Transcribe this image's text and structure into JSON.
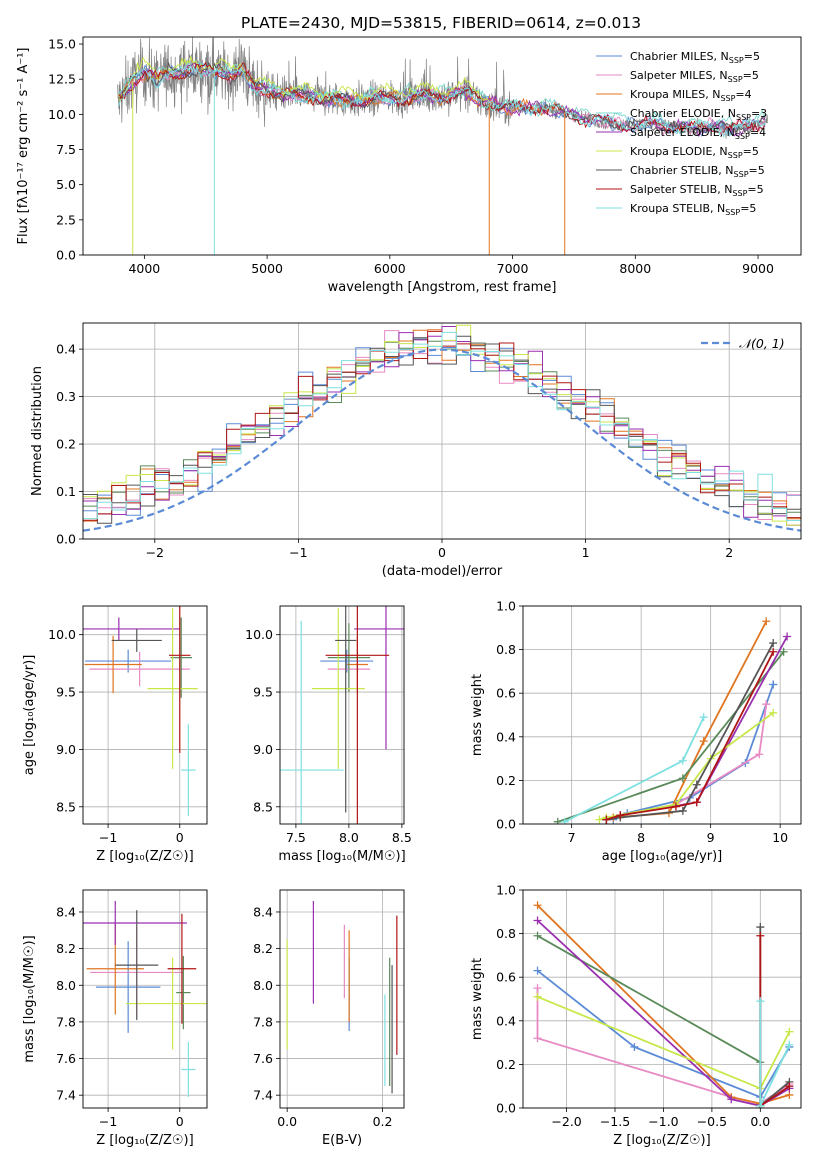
{
  "figure": {
    "title": "PLATE=2430, MJD=53815, FIBERID=0614, z=0.013"
  },
  "series_colors": [
    "#5b8bd6",
    "#e78ac3",
    "#e07520",
    "#7fdad0",
    "#9a2fb0",
    "#c8e84a",
    "#555555",
    "#b01515",
    "#7ee0e0"
  ],
  "chart_data": [
    {
      "id": "spectrum",
      "type": "line",
      "xlabel": "wavelength [Angstrom, rest frame]",
      "ylabel": "Flux [fλ10⁻¹⁷ erg cm⁻² s⁻¹ A⁻¹]",
      "xlim": [
        3500,
        9350
      ],
      "ylim": [
        0,
        15.5
      ],
      "xticks": [
        4000,
        5000,
        6000,
        7000,
        8000,
        9000
      ],
      "yticks": [
        0.0,
        2.5,
        5.0,
        7.5,
        10.0,
        12.5,
        15.0
      ],
      "legend_position": "top-right",
      "data_color": "#808080",
      "continuum": {
        "x": [
          3800,
          3900,
          4000,
          4100,
          4200,
          4300,
          4400,
          4500,
          4600,
          4700,
          4800,
          4900,
          5000,
          5200,
          5400,
          5600,
          5800,
          6000,
          6200,
          6400,
          6600,
          6800,
          7000,
          7200,
          7400,
          7600,
          7800,
          8000,
          8200,
          8400,
          8600,
          8800,
          9000,
          9100
        ],
        "y": [
          11.0,
          12.3,
          13.0,
          12.4,
          13.0,
          12.9,
          13.2,
          13.2,
          13.1,
          12.6,
          13.2,
          11.9,
          11.6,
          11.4,
          11.2,
          11.0,
          11.0,
          11.2,
          11.2,
          11.3,
          11.5,
          10.8,
          10.4,
          10.5,
          10.2,
          9.7,
          9.4,
          9.2,
          9.3,
          9.0,
          9.1,
          9.0,
          9.3,
          9.6
        ]
      },
      "series": [
        {
          "name": "Chabrier MILES, N",
          "ssp": "5"
        },
        {
          "name": "Salpeter MILES, N",
          "ssp": "5"
        },
        {
          "name": "Kroupa MILES, N",
          "ssp": "4"
        },
        {
          "name": "Chabrier ELODIE, N",
          "ssp": "3"
        },
        {
          "name": "Salpeter ELODIE, N",
          "ssp": "4"
        },
        {
          "name": "Kroupa ELODIE, N",
          "ssp": "5"
        },
        {
          "name": "Chabrier STELIB, N",
          "ssp": "5"
        },
        {
          "name": "Salpeter STELIB, N",
          "ssp": "5"
        },
        {
          "name": "Kroupa STELIB, N",
          "ssp": "5"
        }
      ],
      "ssp_subscript": "SSP",
      "ssp_eq": "="
    },
    {
      "id": "residuals",
      "type": "histogram",
      "xlabel": "(data-model)/error",
      "ylabel": "Normed distribution",
      "xlim": [
        -2.5,
        2.5
      ],
      "ylim": [
        0,
        0.455
      ],
      "xticks": [
        -2,
        -1,
        0,
        1,
        2
      ],
      "yticks": [
        0.0,
        0.1,
        0.2,
        0.3,
        0.4
      ],
      "grid": true,
      "bin_width": 0.1,
      "legend": "𝒩(0, 1)",
      "legend_position": "top-right"
    },
    {
      "id": "age_vs_Z",
      "type": "errorbar",
      "xlabel": "Z [log₁₀(Z/Z☉)]",
      "ylabel": "age  [log₁₀(age/yr)]",
      "xlim": [
        -1.35,
        0.38
      ],
      "ylim": [
        8.35,
        10.25
      ],
      "xticks": [
        -1,
        0
      ],
      "yticks": [
        8.5,
        9.0,
        9.5,
        10.0
      ],
      "grid": true,
      "points": [
        {
          "x": -0.72,
          "xerr": 0.6,
          "y": 9.77,
          "yerr": 0.1
        },
        {
          "x": -0.56,
          "xerr": 0.7,
          "y": 9.7,
          "yerr": 0.15
        },
        {
          "x": -0.93,
          "xerr": 0.4,
          "y": 9.74,
          "yerr": 0.25
        },
        {
          "x": 0.02,
          "xerr": 0.15,
          "y": 9.8,
          "yerr": 0.35
        },
        {
          "x": -0.85,
          "xerr": 0.85,
          "y": 10.05,
          "yerr": 0.1
        },
        {
          "x": -0.1,
          "xerr": 0.35,
          "y": 9.53,
          "yerr": 0.7
        },
        {
          "x": -0.6,
          "xerr": 0.35,
          "y": 9.95,
          "yerr": 0.1
        },
        {
          "x": 0.0,
          "xerr": 0.15,
          "y": 9.82,
          "yerr": 0.85
        },
        {
          "x": 0.12,
          "xerr": 0.1,
          "y": 8.82,
          "yerr": 0.4
        }
      ]
    },
    {
      "id": "age_vs_mass",
      "type": "errorbar",
      "xlabel": "mass [log₁₀(M/M☉)]",
      "ylabel": "",
      "xlim": [
        7.35,
        8.52
      ],
      "ylim": [
        8.35,
        10.25
      ],
      "xticks": [
        7.5,
        8.0,
        8.5
      ],
      "yticks": [
        8.5,
        9.0,
        9.5,
        10.0
      ],
      "grid": true,
      "points": [
        {
          "x": 7.98,
          "xerr": 0.25,
          "y": 9.77,
          "yerr": 0.1
        },
        {
          "x": 8.0,
          "xerr": 0.2,
          "y": 9.7,
          "yerr": 0.2
        },
        {
          "x": 8.08,
          "xerr": 0.1,
          "y": 9.74,
          "yerr": 0.25
        },
        {
          "x": 8.0,
          "xerr": 0.2,
          "y": 9.8,
          "yerr": 0.3
        },
        {
          "x": 8.35,
          "xerr": 0.3,
          "y": 10.05,
          "yerr": 1.05
        },
        {
          "x": 7.9,
          "xerr": 0.25,
          "y": 9.53,
          "yerr": 0.7
        },
        {
          "x": 7.97,
          "xerr": 0.1,
          "y": 9.95,
          "yerr": 1.5
        },
        {
          "x": 8.08,
          "xerr": 0.3,
          "y": 9.82,
          "yerr": 1.5
        },
        {
          "x": 7.55,
          "xerr": 0.4,
          "y": 8.82,
          "yerr": 1.3
        }
      ]
    },
    {
      "id": "massweight_vs_age",
      "type": "line",
      "xlabel": "age  [log₁₀(age/yr)]",
      "ylabel": "mass weight",
      "xlim": [
        6.3,
        10.3
      ],
      "ylim": [
        0,
        1.0
      ],
      "xticks": [
        7,
        8,
        9,
        10
      ],
      "yticks": [
        0.0,
        0.2,
        0.4,
        0.6,
        0.8,
        1.0
      ],
      "grid": true,
      "series": [
        {
          "x": [
            7.6,
            7.8,
            8.7,
            9.5,
            9.9,
            9.9
          ],
          "y": [
            0.02,
            0.05,
            0.12,
            0.28,
            0.64,
            0.64
          ]
        },
        {
          "x": [
            7.5,
            7.7,
            8.5,
            9.7,
            9.8,
            9.8
          ],
          "y": [
            0.02,
            0.04,
            0.09,
            0.32,
            0.55,
            0.55
          ]
        },
        {
          "x": [
            7.5,
            7.6,
            8.4,
            8.9,
            9.8
          ],
          "y": [
            0.02,
            0.03,
            0.05,
            0.38,
            0.93
          ]
        },
        {
          "x": [
            6.8,
            8.6,
            10.05
          ],
          "y": [
            0.01,
            0.21,
            0.79
          ]
        },
        {
          "x": [
            7.5,
            7.7,
            8.8,
            10.1
          ],
          "y": [
            0.02,
            0.04,
            0.1,
            0.86
          ]
        },
        {
          "x": [
            7.4,
            7.5,
            8.5,
            9.0,
            9.9
          ],
          "y": [
            0.02,
            0.03,
            0.09,
            0.3,
            0.51
          ]
        },
        {
          "x": [
            7.5,
            7.7,
            8.6,
            8.8,
            9.9
          ],
          "y": [
            0.02,
            0.03,
            0.06,
            0.18,
            0.83
          ]
        },
        {
          "x": [
            7.5,
            7.7,
            8.5,
            8.8,
            9.9
          ],
          "y": [
            0.02,
            0.04,
            0.08,
            0.1,
            0.79
          ]
        },
        {
          "x": [
            6.9,
            8.6,
            8.9
          ],
          "y": [
            0.01,
            0.29,
            0.49
          ]
        }
      ]
    },
    {
      "id": "mass_vs_Z",
      "type": "errorbar",
      "xlabel": "Z [log₁₀(Z/Z☉)]",
      "ylabel": "mass [log₁₀(M/M☉)]",
      "xlim": [
        -1.35,
        0.38
      ],
      "ylim": [
        7.33,
        8.52
      ],
      "xticks": [
        -1,
        0
      ],
      "yticks": [
        7.4,
        7.6,
        7.8,
        8.0,
        8.2,
        8.4
      ],
      "grid": true,
      "points": [
        {
          "x": -0.72,
          "xerr": 0.45,
          "y": 7.99,
          "yerr": 0.25
        },
        {
          "x": -0.6,
          "xerr": 0.65,
          "y": 8.07,
          "yerr": 0.25
        },
        {
          "x": -0.9,
          "xerr": 0.4,
          "y": 8.09,
          "yerr": 0.25
        },
        {
          "x": 0.05,
          "xerr": 0.1,
          "y": 7.96,
          "yerr": 0.2
        },
        {
          "x": -0.9,
          "xerr": 1.0,
          "y": 8.34,
          "yerr": 0.12
        },
        {
          "x": -0.1,
          "xerr": 0.65,
          "y": 7.9,
          "yerr": 0.25
        },
        {
          "x": -0.6,
          "xerr": 0.3,
          "y": 8.11,
          "yerr": 0.3
        },
        {
          "x": 0.03,
          "xerr": 0.2,
          "y": 8.09,
          "yerr": 0.3
        },
        {
          "x": 0.12,
          "xerr": 0.1,
          "y": 7.54,
          "yerr": 0.15
        }
      ]
    },
    {
      "id": "mass_vs_ebv",
      "type": "errorbar",
      "xlabel": "E(B-V)",
      "ylabel": "",
      "xlim": [
        -0.015,
        0.245
      ],
      "ylim": [
        7.33,
        8.52
      ],
      "xticks": [
        0.0,
        0.2
      ],
      "yticks": [
        7.4,
        7.6,
        7.8,
        8.0,
        8.2,
        8.4
      ],
      "grid": true,
      "points": [
        {
          "x": 0.13,
          "xerr": 0,
          "y": 7.95,
          "yerr": 0.2
        },
        {
          "x": 0.12,
          "xerr": 0,
          "y": 8.13,
          "yerr": 0.2
        },
        {
          "x": 0.13,
          "xerr": 0,
          "y": 8.05,
          "yerr": 0.25
        },
        {
          "x": 0.215,
          "xerr": 0,
          "y": 7.8,
          "yerr": 0.35
        },
        {
          "x": 0.055,
          "xerr": 0,
          "y": 8.18,
          "yerr": 0.28
        },
        {
          "x": 0.0,
          "xerr": 0,
          "y": 7.95,
          "yerr": 0.3
        },
        {
          "x": 0.22,
          "xerr": 0,
          "y": 7.76,
          "yerr": 0.35
        },
        {
          "x": 0.23,
          "xerr": 0,
          "y": 8.0,
          "yerr": 0.38
        },
        {
          "x": 0.205,
          "xerr": 0,
          "y": 7.7,
          "yerr": 0.25
        }
      ]
    },
    {
      "id": "massweight_vs_Z",
      "type": "line",
      "xlabel": "Z [log₁₀(Z/Z☉)]",
      "ylabel": "mass weight",
      "xlim": [
        -2.45,
        0.42
      ],
      "ylim": [
        0,
        1.0
      ],
      "xticks": [
        -2.0,
        -1.5,
        -1.0,
        -0.5,
        0.0
      ],
      "yticks": [
        0.0,
        0.2,
        0.4,
        0.6,
        0.8,
        1.0
      ],
      "grid": true,
      "series": [
        {
          "x": [
            -2.3,
            -1.3,
            0.0,
            0.3
          ],
          "y": [
            0.63,
            0.28,
            0.05,
            0.28
          ]
        },
        {
          "x": [
            -2.3,
            -2.3,
            -0.3,
            0.0,
            0.3
          ],
          "y": [
            0.55,
            0.32,
            0.05,
            0.02,
            0.11
          ]
        },
        {
          "x": [
            -2.3,
            -0.3,
            0.0,
            0.3
          ],
          "y": [
            0.93,
            0.05,
            0.02,
            0.06
          ]
        },
        {
          "x": [
            -2.3,
            0.0,
            0.0
          ],
          "y": [
            0.79,
            0.21,
            0.0
          ]
        },
        {
          "x": [
            -2.3,
            -0.3,
            0.0,
            0.3
          ],
          "y": [
            0.86,
            0.04,
            0.01,
            0.09
          ]
        },
        {
          "x": [
            -2.3,
            0.0,
            0.3
          ],
          "y": [
            0.51,
            0.09,
            0.35
          ]
        },
        {
          "x": [
            0.0,
            0.0,
            0.3
          ],
          "y": [
            0.83,
            0.01,
            0.12
          ]
        },
        {
          "x": [
            0.0,
            0.0,
            0.3
          ],
          "y": [
            0.79,
            0.01,
            0.1
          ]
        },
        {
          "x": [
            0.0,
            0.0,
            0.3
          ],
          "y": [
            0.49,
            0.01,
            0.29
          ]
        }
      ]
    }
  ]
}
